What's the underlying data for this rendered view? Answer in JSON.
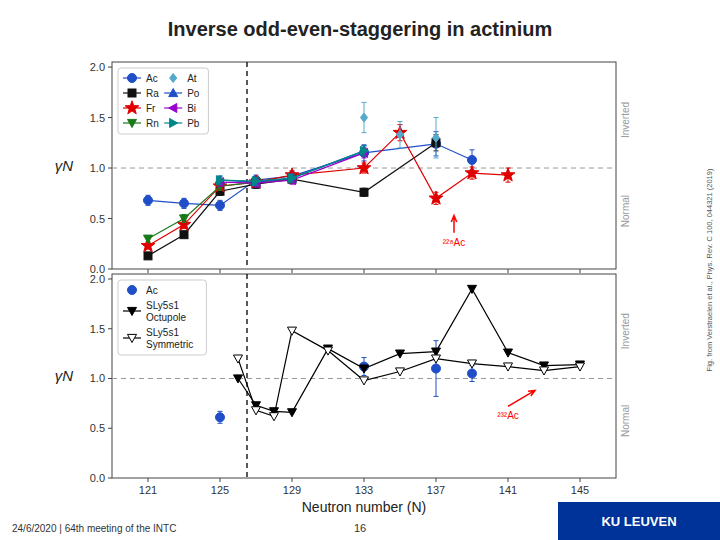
{
  "chart_data": [
    {
      "type": "line",
      "title": "Inverse odd-even-staggering in actinium",
      "y_label": "γN",
      "xlim": [
        119,
        147
      ],
      "ylim": [
        0.0,
        2.05
      ],
      "xticks": [
        121,
        125,
        129,
        133,
        137,
        141,
        145
      ],
      "yticks": [
        {
          "value": 0,
          "label": "0.0"
        },
        0.5,
        {
          "value": 1,
          "label": "1.0"
        },
        1.5,
        {
          "value": 2,
          "label": "2.0"
        }
      ],
      "tick_labels": "y",
      "grid": false,
      "legend": "upper left",
      "series": [
        {
          "name": "Ac",
          "color": "#1f4ec8",
          "marker": "circle",
          "line_style": "solid",
          "x": [
            121,
            123,
            125,
            127,
            129,
            133,
            137,
            139
          ],
          "values": [
            0.68,
            0.65,
            0.63,
            0.88,
            0.92,
            1.15,
            1.24,
            1.08
          ],
          "errors": [
            0.05,
            0.05,
            0.05,
            0.05,
            0.05,
            0.08,
            0.12,
            0.1
          ]
        },
        {
          "name": "Ra",
          "color": "#111111",
          "marker": "square",
          "line_style": "solid",
          "x": [
            121,
            123,
            125,
            127,
            129,
            133,
            137
          ],
          "values": [
            0.13,
            0.34,
            0.77,
            0.84,
            0.89,
            0.76,
            1.25
          ],
          "errors": [
            0.02,
            0.03,
            0.04,
            0.04,
            0.04,
            0.04,
            0.08
          ]
        },
        {
          "name": "Fr",
          "color": "#e00000",
          "marker": "star",
          "line_style": "solid",
          "x": [
            121,
            123,
            125,
            127,
            129,
            133,
            135,
            137,
            139,
            141
          ],
          "values": [
            0.23,
            0.44,
            0.82,
            0.86,
            0.93,
            1.0,
            1.35,
            0.7,
            0.95,
            0.93
          ],
          "errors": [
            0.03,
            0.04,
            0.04,
            0.04,
            0.04,
            0.05,
            0.08,
            0.06,
            0.06,
            0.07
          ]
        },
        {
          "name": "Rn",
          "color": "#1a7a1a",
          "marker": "triangle-down",
          "line_style": "solid",
          "x": [
            121,
            123,
            125,
            127,
            129
          ],
          "values": [
            0.3,
            0.5,
            0.82,
            0.86,
            0.89
          ],
          "errors": [
            0.03,
            0.04,
            0.04,
            0.04,
            0.04
          ]
        },
        {
          "name": "At",
          "color": "#55aacc",
          "marker": "diamond",
          "line_style": "none",
          "x": [
            133,
            135,
            137
          ],
          "values": [
            1.5,
            1.33,
            1.3
          ],
          "errors": [
            0.15,
            0.13,
            0.2
          ]
        },
        {
          "name": "Po",
          "color": "#1f4ec8",
          "marker": "triangle-up",
          "line_style": "solid",
          "x": [
            125,
            127,
            129,
            133
          ],
          "values": [
            0.88,
            0.86,
            0.9,
            1.17
          ],
          "errors": [
            0.04,
            0.04,
            0.04,
            0.05
          ]
        },
        {
          "name": "Bi",
          "color": "#9900cc",
          "marker": "triangle-left",
          "line_style": "solid",
          "x": [
            125,
            127,
            129,
            133
          ],
          "values": [
            0.86,
            0.85,
            0.88,
            1.15
          ],
          "errors": [
            0.04,
            0.04,
            0.04,
            0.05
          ]
        },
        {
          "name": "Pb",
          "color": "#008888",
          "marker": "triangle-right",
          "line_style": "solid",
          "x": [
            125,
            127,
            129,
            133
          ],
          "values": [
            0.88,
            0.87,
            0.9,
            1.17
          ],
          "errors": [
            0.04,
            0.04,
            0.04,
            0.05
          ]
        }
      ],
      "annotations": [
        {
          "kind": "hline",
          "y": 1.0
        },
        {
          "kind": "vline",
          "x": 126.5
        },
        {
          "kind": "arrow",
          "text": "²²⁸Ac",
          "color": "red",
          "x": 138,
          "y": 0.53,
          "from": [
            138,
            0.36
          ]
        },
        {
          "kind": "side",
          "text": "Inverted"
        },
        {
          "kind": "side",
          "text": "Normal"
        }
      ]
    },
    {
      "type": "line",
      "y_label": "γN",
      "x_label": "Neutron number (N)",
      "xlim": [
        119,
        147
      ],
      "ylim": [
        0.0,
        2.05
      ],
      "xticks": [
        121,
        125,
        129,
        133,
        137,
        141,
        145
      ],
      "yticks": [
        {
          "value": 0,
          "label": "0.0"
        },
        0.5,
        {
          "value": 1,
          "label": "1.0"
        },
        1.5,
        {
          "value": 2,
          "label": "2.0"
        }
      ],
      "grid": false,
      "legend": "upper left",
      "series": [
        {
          "name": "Ac",
          "color": "#1f4ec8",
          "marker": "circle",
          "line_style": "none",
          "x": [
            125,
            133,
            137,
            139
          ],
          "values": [
            0.61,
            1.12,
            1.1,
            1.05
          ],
          "errors": [
            0.06,
            0.09,
            0.28,
            0.08
          ]
        },
        {
          "name": "SLy5s1\nOctupole",
          "color": "#000000",
          "marker": "triangle-down",
          "line_style": "solid",
          "x": [
            126,
            127,
            128,
            129,
            131,
            133,
            135,
            137,
            139,
            141,
            143,
            145
          ],
          "values": [
            1.0,
            0.73,
            0.67,
            0.66,
            1.3,
            1.1,
            1.25,
            1.27,
            1.9,
            1.26,
            1.13,
            1.14
          ]
        },
        {
          "name": "SLy5s1\nSymmetric",
          "color": "#000000",
          "marker": "triangle-down-open",
          "line_style": "solid",
          "x": [
            126,
            127,
            128,
            129,
            131,
            133,
            135,
            137,
            139,
            141,
            143,
            145
          ],
          "values": [
            1.2,
            0.68,
            0.62,
            1.48,
            1.28,
            0.98,
            1.07,
            1.2,
            1.15,
            1.12,
            1.08,
            1.12
          ]
        }
      ],
      "annotations": [
        {
          "kind": "hline",
          "y": 1.0
        },
        {
          "kind": "vline",
          "x": 126.5
        },
        {
          "kind": "arrow",
          "text": "²³²Ac",
          "color": "red",
          "x": 142.5,
          "y": 0.88,
          "from": [
            141,
            0.72
          ]
        },
        {
          "kind": "side",
          "text": "Inverted"
        },
        {
          "kind": "side",
          "text": "Normal"
        },
        {
          "kind": "footer",
          "text": "24/6/2020 | 64th meeting of the INTC"
        },
        {
          "kind": "page_number",
          "text": "16"
        },
        {
          "kind": "logo",
          "text": "KU LEUVEN",
          "color": "#003399"
        },
        {
          "kind": "source",
          "text": "Fig. from Verstraelen et al., Phys. Rev. C 100, 044321 (2019)"
        }
      ]
    }
  ]
}
